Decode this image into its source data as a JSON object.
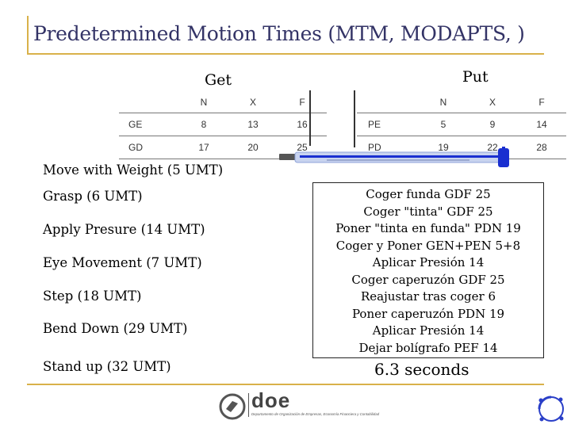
{
  "slide": {
    "title": "Predetermined Motion Times (MTM, MODAPTS, )"
  },
  "get": {
    "label": "Get",
    "columns": [
      "N",
      "X",
      "F"
    ],
    "rows": [
      {
        "name": "GE",
        "values": [
          "8",
          "13",
          "16"
        ]
      },
      {
        "name": "GD",
        "values": [
          "17",
          "20",
          "25"
        ]
      }
    ]
  },
  "put": {
    "label": "Put",
    "columns": [
      "N",
      "X",
      "F"
    ],
    "rows": [
      {
        "name": "PE",
        "values": [
          "5",
          "9",
          "14"
        ]
      },
      {
        "name": "PD",
        "values": [
          "19",
          "22",
          "28"
        ]
      }
    ]
  },
  "motions": [
    "Move with Weight (5 UMT)",
    "Grasp (6 UMT)",
    "Apply Presure (14 UMT)",
    "Eye Movement (7 UMT)",
    "Step (18 UMT)",
    "Bend Down (29 UMT)",
    "Stand up (32 UMT)"
  ],
  "analysis": {
    "lines": [
      "Coger funda GDF  25",
      "Coger \"tinta\" GDF 25",
      "Poner \"tinta en funda\" PDN 19",
      "Coger y Poner GEN+PEN 5+8",
      "Aplicar Presión 14",
      "Coger caperuzón GDF 25",
      "Reajustar tras coger  6",
      "Poner caperuzón PDN 19",
      "Aplicar Presión 14",
      "Dejar bolígrafo PEF 14"
    ],
    "result": "6.3 seconds"
  },
  "footer": {
    "logo_word": "doe",
    "logo_caption": "Departamento de Organización de Empresas, Economía Financiera y Contabilidad"
  },
  "colors": {
    "title": "#333366",
    "rule": "#d9b14a",
    "pen_body": "#8fa3d8",
    "pen_accent": "#1a2fd0"
  }
}
